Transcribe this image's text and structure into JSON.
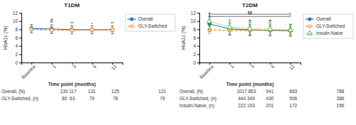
{
  "chart_data": [
    {
      "type": "line",
      "title": "T1DM",
      "x_label": "Time point (months)",
      "y_label": "HbA1c (%)",
      "categories": [
        "Baseline",
        "1",
        "3",
        "6",
        "12"
      ],
      "ylim": [
        0,
        12
      ],
      "yticks": [
        0,
        2,
        4,
        6,
        8,
        10,
        12
      ],
      "legend": "right",
      "series": [
        {
          "name": "Overall",
          "marker": "square",
          "line_style": "solid",
          "values": [
            8.2,
            8.1,
            7.9,
            7.9,
            7.9
          ],
          "errors": [
            1.0,
            1.0,
            1.0,
            1.0,
            1.0
          ]
        },
        {
          "name": "GLY-Switched",
          "marker": "open-square",
          "line_style": "dashed",
          "values": [
            8.0,
            7.85,
            7.8,
            7.9,
            7.9
          ],
          "errors": [
            0.9,
            0.9,
            0.9,
            0.9,
            0.9
          ]
        }
      ],
      "annotations": [
        {
          "category": "1",
          "y": 9.3,
          "text": "**"
        },
        {
          "category": "3",
          "y": 9.1,
          "text": "**"
        },
        {
          "category": "6",
          "y": 9.0,
          "text": "*"
        },
        {
          "category": "12",
          "y": 9.1,
          "text": "**"
        },
        {
          "category": "1",
          "y": 9.9,
          "text": "#"
        }
      ],
      "table": {
        "rows": [
          {
            "label": "Overall, (N)",
            "values": [
              "130 117",
              "131",
              "125",
              null,
              "121"
            ]
          },
          {
            "label": "GLY-Switched, (n)",
            "values": [
              "80  63",
              "79",
              "78",
              null,
              "79"
            ]
          }
        ]
      }
    },
    {
      "type": "line",
      "title": "T2DM",
      "x_label": "Time point (months)",
      "y_label": "HbA1c (%)",
      "categories": [
        "Baseline",
        "1",
        "3",
        "6",
        "12"
      ],
      "ylim": [
        0,
        12
      ],
      "yticks": [
        0,
        2,
        4,
        6,
        8,
        10,
        12
      ],
      "legend": "right",
      "series": [
        {
          "name": "Overall",
          "marker": "square",
          "line_style": "solid",
          "values": [
            9.3,
            8.1,
            7.85,
            7.75,
            7.75
          ],
          "errors": [
            1.8,
            1.5,
            1.35,
            1.35,
            1.35
          ]
        },
        {
          "name": "GLY-Switched",
          "marker": "open-square",
          "line_style": "dashed",
          "values": [
            7.9,
            7.75,
            7.75,
            7.8,
            7.7
          ],
          "errors": [
            0.9,
            0.9,
            0.9,
            0.9,
            0.9
          ]
        },
        {
          "name": "Insulin-Naive",
          "marker": "open-triangle",
          "line_style": "dotted",
          "values": [
            9.9,
            8.5,
            8.1,
            8.05,
            7.8
          ],
          "errors": [
            2.0,
            1.8,
            1.55,
            1.55,
            1.45
          ]
        }
      ],
      "annotations": [
        {
          "category": "3",
          "y": 9.8,
          "text": "#"
        },
        {
          "category": "6",
          "y": 9.7,
          "text": "#"
        }
      ],
      "brackets": [
        {
          "from": "Baseline",
          "to": "12",
          "y": 11.1,
          "text": "**"
        },
        {
          "from": "Baseline",
          "to": "12",
          "y": 11.65,
          "text": "ϕϕ"
        }
      ],
      "table": {
        "rows": [
          {
            "label": "Overall, (N)",
            "values": [
              "1017 853",
              "941",
              "663",
              null,
              "788"
            ]
          },
          {
            "label": "GLY-Switched, (n)",
            "values": [
              "444 349",
              "430",
              "506",
              null,
              "386"
            ]
          },
          {
            "label": "Insulin-Naive, (n)",
            "values": [
              "222 193",
              "201",
              "172",
              null,
              "156"
            ]
          }
        ]
      }
    }
  ]
}
